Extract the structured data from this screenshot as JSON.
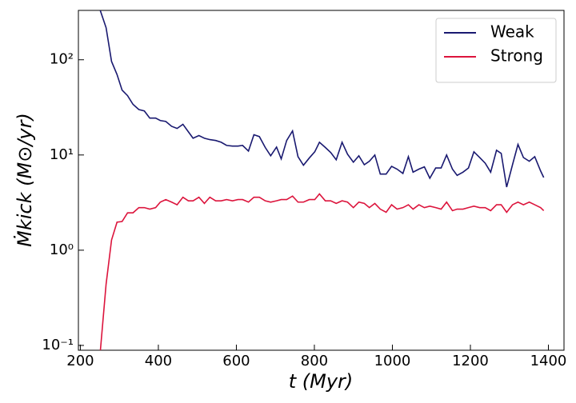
{
  "chart_data": {
    "type": "line",
    "x_label": "t (Myr)",
    "y_label": "Ṁkick (M⊙/yr)",
    "x": [
      251,
      266,
      280,
      294,
      307,
      321,
      335,
      350,
      364,
      378,
      393,
      405,
      419,
      434,
      448,
      463,
      477,
      489,
      504,
      518,
      532,
      547,
      561,
      575,
      590,
      604,
      616,
      631,
      645,
      659,
      674,
      688,
      703,
      715,
      729,
      744,
      758,
      772,
      787,
      801,
      813,
      828,
      842,
      856,
      871,
      885,
      900,
      914,
      928,
      941,
      955,
      969,
      984,
      998,
      1012,
      1027,
      1041,
      1053,
      1068,
      1082,
      1096,
      1111,
      1125,
      1139,
      1154,
      1166,
      1181,
      1195,
      1209,
      1224,
      1238,
      1252,
      1267,
      1279,
      1293,
      1308,
      1322,
      1336,
      1351,
      1365,
      1380,
      1388
    ],
    "series": [
      {
        "name": "Weak",
        "color": "#191970",
        "values": [
          330,
          217,
          96,
          70,
          48,
          42,
          34,
          30,
          29,
          24.4,
          24.4,
          23,
          22.5,
          20,
          19,
          21,
          17.5,
          15,
          16,
          15,
          14.5,
          14.2,
          13.6,
          12.6,
          12.4,
          12.4,
          12.6,
          11,
          16.3,
          15.6,
          12,
          9.8,
          12.1,
          9.1,
          14.2,
          17.9,
          9.6,
          7.8,
          9.3,
          10.8,
          13.6,
          12,
          10.6,
          8.9,
          13.6,
          10.2,
          8.4,
          9.8,
          7.9,
          8.6,
          10,
          6.3,
          6.3,
          7.6,
          7.1,
          6.4,
          9.6,
          6.6,
          7.1,
          7.5,
          5.7,
          7.3,
          7.3,
          10,
          7.1,
          6.1,
          6.6,
          7.3,
          10.8,
          9.4,
          8.2,
          6.6,
          11.2,
          10.4,
          4.6,
          7.9,
          12.9,
          9.4,
          8.6,
          9.6,
          6.8,
          5.8
        ]
      },
      {
        "name": "Strong",
        "color": "#dc143c",
        "values": [
          0.085,
          0.44,
          1.28,
          1.97,
          2.0,
          2.47,
          2.47,
          2.8,
          2.8,
          2.7,
          2.8,
          3.2,
          3.4,
          3.2,
          3.0,
          3.6,
          3.3,
          3.3,
          3.6,
          3.1,
          3.6,
          3.3,
          3.3,
          3.4,
          3.3,
          3.4,
          3.4,
          3.2,
          3.6,
          3.6,
          3.3,
          3.2,
          3.3,
          3.4,
          3.4,
          3.7,
          3.2,
          3.2,
          3.4,
          3.4,
          3.9,
          3.3,
          3.3,
          3.1,
          3.3,
          3.2,
          2.8,
          3.2,
          3.1,
          2.8,
          3.1,
          2.7,
          2.5,
          3.0,
          2.7,
          2.8,
          3.0,
          2.7,
          3.0,
          2.8,
          2.9,
          2.8,
          2.7,
          3.2,
          2.6,
          2.7,
          2.7,
          2.8,
          2.9,
          2.8,
          2.8,
          2.6,
          3.0,
          3.0,
          2.5,
          3.0,
          3.2,
          3.0,
          3.2,
          3.0,
          2.8,
          2.6
        ]
      }
    ],
    "xlim": [
      195,
      1440
    ],
    "xticks": [
      200,
      400,
      600,
      800,
      1000,
      1200,
      1400
    ],
    "ylim": [
      0.089,
      330
    ],
    "yticks": [
      {
        "value": 0.1,
        "label": "10⁻¹"
      },
      {
        "value": 1,
        "label": "10⁰"
      },
      {
        "value": 10,
        "label": "10¹"
      },
      {
        "value": 100,
        "label": "10²"
      }
    ],
    "y_scale": "log",
    "legend": "upper right"
  }
}
